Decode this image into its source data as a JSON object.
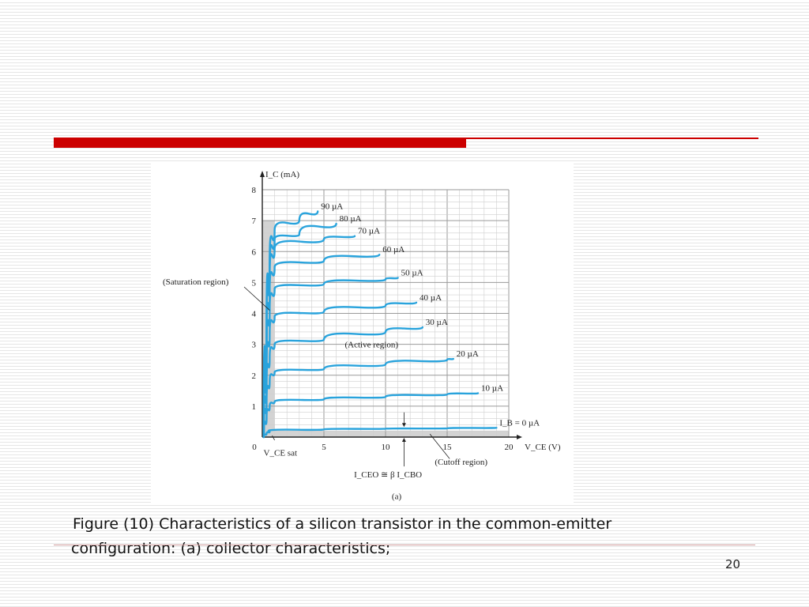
{
  "slide": {
    "accent_color": "#cc0000",
    "page_number": "20"
  },
  "caption": {
    "line1": "Figure (10) Characteristics of a silicon transistor in the common-emitter",
    "line2": "configuration: (a) collector characteristics;"
  },
  "chart_data": {
    "type": "line",
    "title": "",
    "subfigure_label": "(a)",
    "ylabel": "I_C (mA)",
    "xlabel": "V_CE (V)",
    "xlim": [
      0,
      20
    ],
    "ylim": [
      0,
      8
    ],
    "x_ticks": [
      "0",
      "5",
      "10",
      "15",
      "20"
    ],
    "y_ticks": [
      "1",
      "2",
      "3",
      "4",
      "5",
      "6",
      "7",
      "8"
    ],
    "grid": true,
    "line_color": "#29a3dc",
    "series": [
      {
        "name": "I_B = 0 µA",
        "x": [
          0.5,
          5,
          10,
          15,
          19
        ],
        "y": [
          0.2,
          0.25,
          0.27,
          0.28,
          0.3
        ]
      },
      {
        "name": "10 µA",
        "x": [
          1,
          5,
          10,
          15,
          17.5
        ],
        "y": [
          1.15,
          1.22,
          1.3,
          1.38,
          1.42
        ]
      },
      {
        "name": "20 µA",
        "x": [
          1,
          5,
          10,
          15,
          15.5
        ],
        "y": [
          2.1,
          2.2,
          2.35,
          2.5,
          2.53
        ]
      },
      {
        "name": "30 µA",
        "x": [
          1,
          5,
          10,
          13
        ],
        "y": [
          3.0,
          3.15,
          3.4,
          3.55
        ]
      },
      {
        "name": "40 µA",
        "x": [
          1,
          5,
          10,
          12.5
        ],
        "y": [
          3.9,
          4.05,
          4.25,
          4.35
        ]
      },
      {
        "name": "50 µA",
        "x": [
          1,
          5,
          10,
          11
        ],
        "y": [
          4.8,
          4.95,
          5.1,
          5.15
        ]
      },
      {
        "name": "60 µA",
        "x": [
          1,
          5,
          9.5
        ],
        "y": [
          5.5,
          5.7,
          5.9
        ]
      },
      {
        "name": "70 µA",
        "x": [
          1,
          5,
          7.5
        ],
        "y": [
          6.1,
          6.4,
          6.5
        ]
      },
      {
        "name": "80 µA",
        "x": [
          1,
          3,
          6
        ],
        "y": [
          6.4,
          6.55,
          6.9
        ]
      },
      {
        "name": "90 µA",
        "x": [
          1,
          3,
          4.5
        ],
        "y": [
          6.7,
          7.0,
          7.3
        ]
      }
    ],
    "annotations": {
      "saturation": "(Saturation region)",
      "active": "(Active region)",
      "cutoff": "(Cutoff region)",
      "vce_sat": "V_CE sat",
      "iceo": "I_CEO ≅ β I_CBO"
    }
  }
}
